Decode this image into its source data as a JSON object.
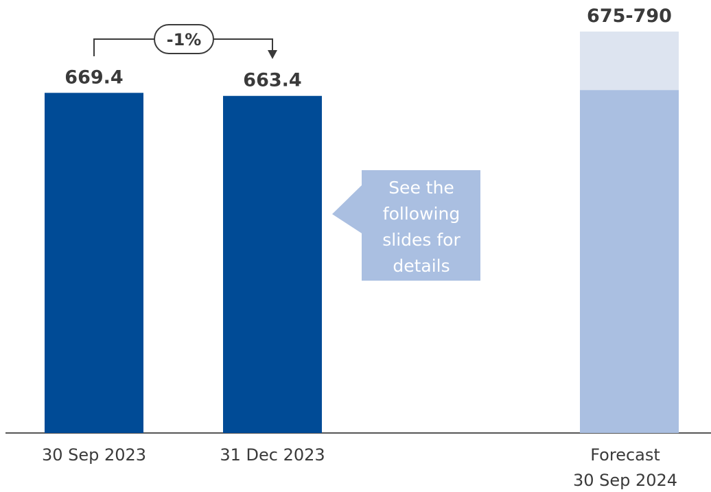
{
  "chart_data": {
    "type": "bar",
    "categories": [
      "30 Sep 2023",
      "31 Dec 2023",
      "Forecast 30 Sep 2024"
    ],
    "category_lines": [
      [
        "30 Sep 2023"
      ],
      [
        "31 Dec 2023"
      ],
      [
        "Forecast",
        "30 Sep 2024"
      ]
    ],
    "values": [
      669.4,
      663.4,
      null
    ],
    "value_labels": [
      "669.4",
      "663.4",
      "675-790"
    ],
    "forecast_range": [
      675,
      790
    ],
    "ylim": [
      0,
      790
    ],
    "title": "",
    "xlabel": "",
    "ylabel": "",
    "grid": false,
    "colors": {
      "actual": "#004b96",
      "forecast_low": "#aabfe1",
      "forecast_range": "#dde4f0",
      "callout": "#aabfe1",
      "axis": "#555555",
      "text": "#3a3a3a"
    },
    "change_annotation": {
      "label": "-1%",
      "from": "30 Sep 2023",
      "to": "31 Dec 2023"
    },
    "callout": {
      "lines": [
        "See the",
        "following",
        "slides for",
        "details"
      ]
    }
  }
}
